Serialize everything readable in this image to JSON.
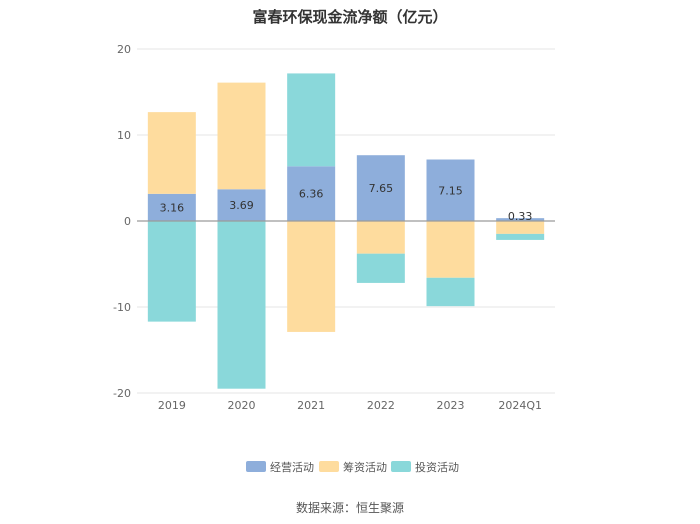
{
  "chart_data": {
    "type": "bar",
    "stacked": true,
    "title": "富春环保现金流净额（亿元）",
    "categories": [
      "2019",
      "2020",
      "2021",
      "2022",
      "2023",
      "2024Q1"
    ],
    "series": [
      {
        "name": "经营活动",
        "color": "#8eaedb",
        "values": [
          3.16,
          3.69,
          6.36,
          7.65,
          7.15,
          0.33
        ]
      },
      {
        "name": "筹资活动",
        "color": "#fedc9e",
        "values": [
          9.5,
          12.4,
          -12.9,
          -3.8,
          -6.6,
          -1.5
        ]
      },
      {
        "name": "投资活动",
        "color": "#8ad8da",
        "values": [
          -11.7,
          -19.5,
          10.8,
          -3.4,
          -3.3,
          -0.7
        ]
      }
    ],
    "data_labels": [
      "3.16",
      "3.69",
      "6.36",
      "7.65",
      "7.15",
      "0.33"
    ],
    "ylim": [
      -20,
      20
    ],
    "yticks": [
      -20,
      -10,
      0,
      10,
      20
    ],
    "grid": true,
    "legend_position": "bottom"
  },
  "source": "数据来源：恒生聚源"
}
